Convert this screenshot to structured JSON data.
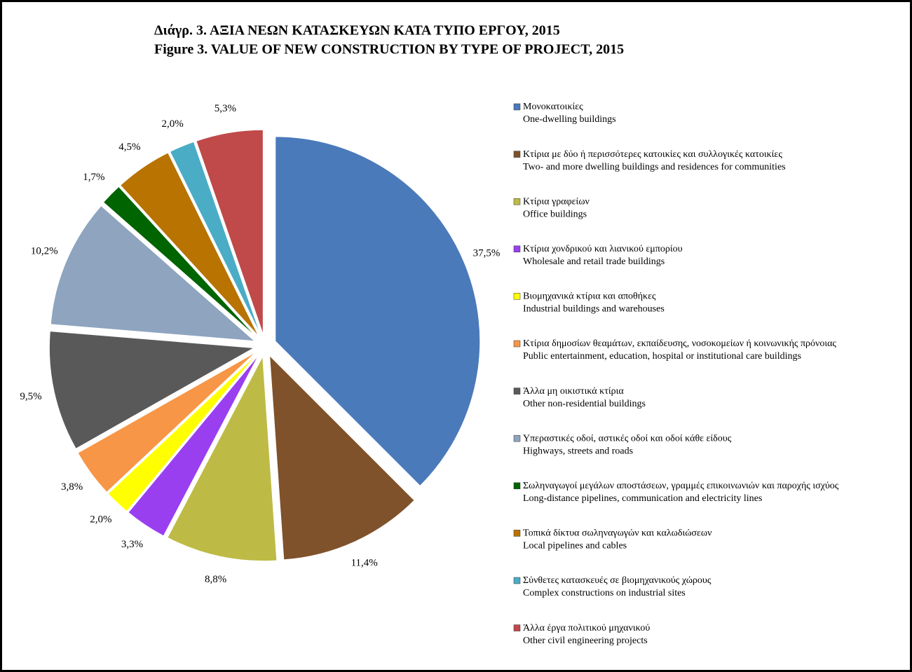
{
  "chart_data": {
    "type": "pie",
    "title": "Διάγρ. 3.  ΑΞΙΑ ΝΕΩΝ ΚΑΤΑΣΚΕΥΩΝ ΚΑΤΑ ΤΥΠΟ ΕΡΓΟΥ, 2015",
    "title_en": "Figure 3.  VALUE OF NEW CONSTRUCTION BY TYPE OF PROJECT, 2015",
    "categories": [
      "Μονοκατοικίες",
      "Κτίρια με δύο ή περισσότερες κατοικίες και συλλογικές κατοικίες",
      "Κτίρια γραφείων",
      "Κτίρια χονδρικού και λιανικού εμπορίου",
      "Βιομηχανικά κτίρια και αποθήκες",
      "Κτίρια δημοσίων θεαμάτων, εκπαίδευσης, νοσοκομείων ή κοινωνικής πρόνοιας",
      "Άλλα μη οικιστικά κτίρια",
      "Υπεραστικές οδοί, αστικές οδοί και οδοί κάθε είδους",
      "Σωληναγωγοί μεγάλων αποστάσεων, γραμμές επικοινωνιών και παροχής ισχύος",
      "Τοπικά δίκτυα σωληναγωγών και καλωδιώσεων",
      "Σύνθετες κατασκευές σε βιομηχανικούς χώρους",
      "Άλλα έργα πολιτικού μηχανικού"
    ],
    "categories_en": [
      "One-dwelling buildings",
      "Two- and more dwelling buildings and residences for communities",
      "Office buildings",
      "Wholesale and retail trade buildings",
      "Industrial buildings and warehouses",
      "Public entertainment, education, hospital or institutional care buildings",
      "Other non-residential buildings",
      "Highways, streets and roads",
      "Long-distance pipelines, communication and electricity  lines",
      "Local pipelines and cables",
      "Complex constructions on industrial sites",
      "Other civil engineering projects"
    ],
    "values": [
      37.5,
      11.4,
      8.8,
      3.3,
      2.0,
      3.8,
      9.5,
      10.2,
      1.7,
      4.5,
      2.0,
      5.3
    ],
    "value_labels": [
      "37,5%",
      "11,4%",
      "8,8%",
      "3,3%",
      "2,0%",
      "3,8%",
      "9,5%",
      "10,2%",
      "1,7%",
      "4,5%",
      "2,0%",
      "5,3%"
    ],
    "colors": [
      "#4a7aba",
      "#7f522b",
      "#bdbb45",
      "#9a3ff0",
      "#ffff00",
      "#f79646",
      "#595959",
      "#8ea4bf",
      "#006400",
      "#b87300",
      "#4bacc6",
      "#c0494a"
    ],
    "legend": "right"
  }
}
